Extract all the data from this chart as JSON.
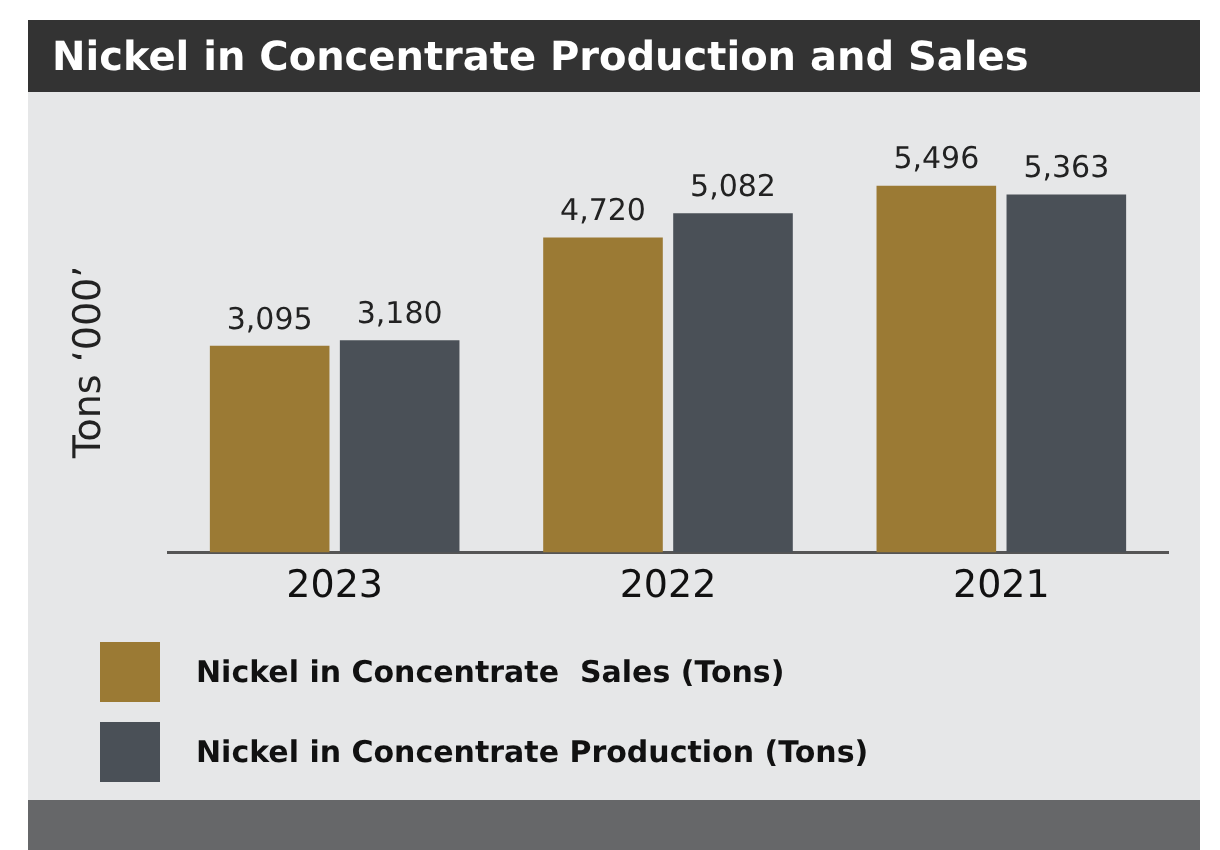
{
  "chart_data": {
    "type": "bar",
    "title": "Nickel in Concentrate Production and Sales",
    "ylabel": "Tons ‘000’",
    "categories": [
      "2023",
      "2022",
      "2021"
    ],
    "series": [
      {
        "name": "Nickel in Concentrate  Sales (Tons)",
        "color": "#9b7a34",
        "values": [
          3095,
          4720,
          5496
        ],
        "value_labels": [
          "3,095",
          "4,720",
          "5,496"
        ]
      },
      {
        "name": "Nickel in Concentrate Production (Tons)",
        "color": "#4a5057",
        "values": [
          3180,
          5082,
          5363
        ],
        "value_labels": [
          "3,180",
          "5,082",
          "5,363"
        ]
      }
    ],
    "grid": false,
    "legend": "bottom",
    "tick_labels": "x"
  }
}
